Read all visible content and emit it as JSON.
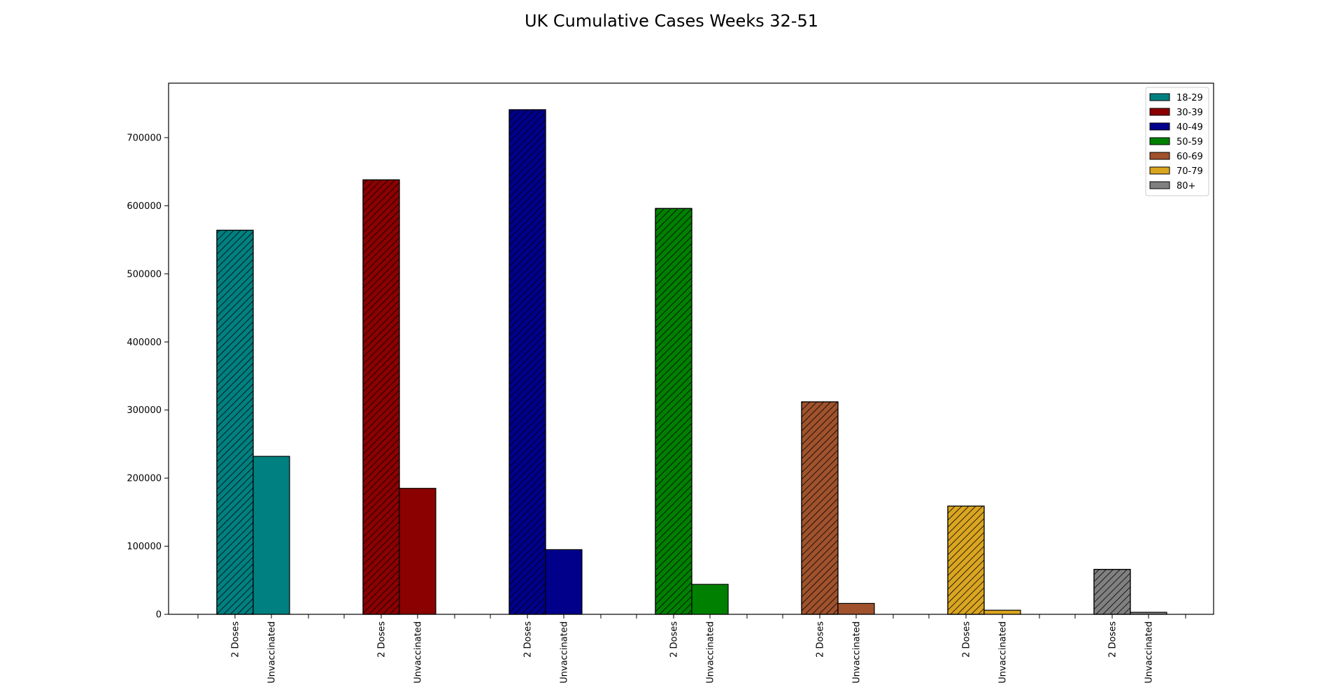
{
  "chart_data": {
    "type": "bar",
    "title": "UK Cumulative Cases Weeks 32-51",
    "xlabel": "",
    "ylabel": "",
    "ylim": [
      0,
      780000
    ],
    "yticks": [
      0,
      100000,
      200000,
      300000,
      400000,
      500000,
      600000,
      700000
    ],
    "ytick_labels": [
      "0",
      "100000",
      "200000",
      "300000",
      "400000",
      "500000",
      "600000",
      "700000"
    ],
    "bar_labels": [
      "2 Doses",
      "Unvaccinated"
    ],
    "legend_position": "top-right",
    "grid": false,
    "groups": [
      {
        "name": "18-29",
        "color": "#008080",
        "values": [
          564000,
          232000
        ]
      },
      {
        "name": "30-39",
        "color": "#8b0000",
        "values": [
          638000,
          185000
        ]
      },
      {
        "name": "40-49",
        "color": "#00008b",
        "values": [
          741000,
          95000
        ]
      },
      {
        "name": "50-59",
        "color": "#008000",
        "values": [
          596000,
          44000
        ]
      },
      {
        "name": "60-69",
        "color": "#a0522d",
        "values": [
          312000,
          16000
        ]
      },
      {
        "name": "70-79",
        "color": "#daa520",
        "values": [
          159000,
          6000
        ]
      },
      {
        "name": "80+",
        "color": "#808080",
        "values": [
          66000,
          3000
        ]
      }
    ]
  }
}
